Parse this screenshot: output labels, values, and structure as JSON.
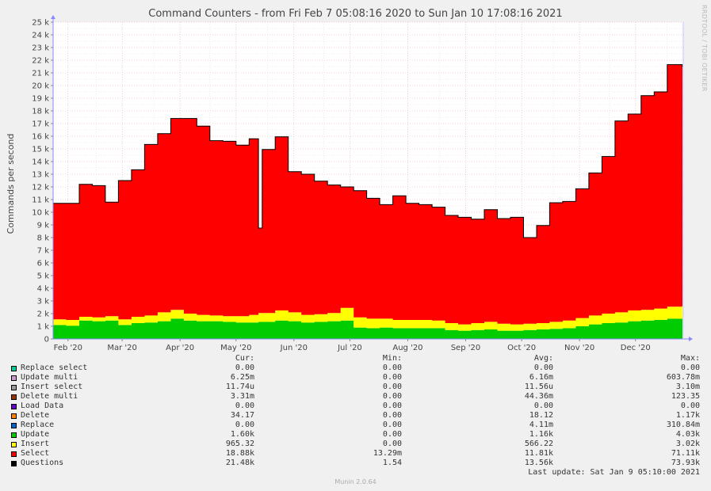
{
  "chart_data": {
    "type": "area",
    "title": "Command Counters - from Fri Feb  7 05:08:16 2020 to Sun Jan 10 17:08:16 2021",
    "ylabel": "Commands per second",
    "xlabel": "",
    "ylim": [
      0,
      25000
    ],
    "y_tick_values": [
      0,
      1000,
      2000,
      3000,
      4000,
      5000,
      6000,
      7000,
      8000,
      9000,
      10000,
      11000,
      12000,
      13000,
      14000,
      15000,
      16000,
      17000,
      18000,
      19000,
      20000,
      21000,
      22000,
      23000,
      24000,
      25000
    ],
    "y_tick_labels": [
      "0",
      "1 k",
      "2 k",
      "3 k",
      "4 k",
      "5 k",
      "6 k",
      "7 k",
      "8 k",
      "9 k",
      "10 k",
      "11 k",
      "12 k",
      "13 k",
      "14 k",
      "15 k",
      "16 k",
      "17 k",
      "18 k",
      "19 k",
      "20 k",
      "21 k",
      "22 k",
      "23 k",
      "24 k",
      "25 k"
    ],
    "x_range": [
      "2020-02-07",
      "2021-01-10"
    ],
    "x_tick_labels": [
      "Feb '20",
      "Mar '20",
      "Apr '20",
      "May '20",
      "Jun '20",
      "Jul '20",
      "Aug '20",
      "Sep '20",
      "Oct '20",
      "Nov '20",
      "Dec '20"
    ],
    "x_tick_dates": [
      "2020-02-15",
      "2020-03-15",
      "2020-04-15",
      "2020-05-15",
      "2020-06-15",
      "2020-07-15",
      "2020-08-15",
      "2020-09-15",
      "2020-10-15",
      "2020-11-15",
      "2020-12-15"
    ],
    "grid": true,
    "stacked": true,
    "dates": [
      "2020-02-07",
      "2020-02-14",
      "2020-02-21",
      "2020-02-28",
      "2020-03-06",
      "2020-03-13",
      "2020-03-20",
      "2020-03-27",
      "2020-04-03",
      "2020-04-10",
      "2020-04-17",
      "2020-04-24",
      "2020-05-01",
      "2020-05-08",
      "2020-05-15",
      "2020-05-22",
      "2020-05-27",
      "2020-05-29",
      "2020-06-05",
      "2020-06-12",
      "2020-06-19",
      "2020-06-26",
      "2020-07-03",
      "2020-07-10",
      "2020-07-17",
      "2020-07-24",
      "2020-07-31",
      "2020-08-07",
      "2020-08-14",
      "2020-08-21",
      "2020-08-28",
      "2020-09-04",
      "2020-09-11",
      "2020-09-18",
      "2020-09-25",
      "2020-10-02",
      "2020-10-09",
      "2020-10-16",
      "2020-10-23",
      "2020-10-30",
      "2020-11-06",
      "2020-11-13",
      "2020-11-20",
      "2020-11-27",
      "2020-12-04",
      "2020-12-11",
      "2020-12-18",
      "2020-12-25",
      "2021-01-01",
      "2021-01-09"
    ],
    "series": [
      {
        "name": "Update",
        "color": "#00cc00",
        "values": [
          1100,
          1050,
          1450,
          1400,
          1450,
          1100,
          1250,
          1300,
          1400,
          1600,
          1450,
          1400,
          1400,
          1350,
          1300,
          1300,
          1350,
          1350,
          1450,
          1400,
          1300,
          1350,
          1400,
          1450,
          900,
          850,
          900,
          850,
          850,
          850,
          850,
          700,
          650,
          700,
          750,
          650,
          650,
          700,
          750,
          800,
          850,
          1000,
          1150,
          1250,
          1300,
          1400,
          1450,
          1500,
          1600,
          1600
        ]
      },
      {
        "name": "Insert",
        "color": "#ffff00",
        "values": [
          450,
          450,
          300,
          300,
          350,
          450,
          500,
          550,
          700,
          700,
          550,
          500,
          450,
          450,
          500,
          600,
          700,
          700,
          800,
          700,
          600,
          600,
          650,
          1000,
          800,
          750,
          700,
          650,
          650,
          650,
          600,
          550,
          500,
          550,
          600,
          550,
          500,
          500,
          500,
          550,
          600,
          650,
          700,
          750,
          800,
          850,
          850,
          900,
          950,
          1000
        ]
      },
      {
        "name": "Select",
        "color": "#ff0000",
        "values": [
          9150,
          9200,
          10450,
          10400,
          9000,
          10950,
          11600,
          13500,
          14100,
          15100,
          15400,
          14900,
          13800,
          13800,
          13500,
          13900,
          6700,
          12900,
          13700,
          11100,
          11100,
          10500,
          10100,
          9550,
          10000,
          9500,
          9000,
          9800,
          9200,
          9100,
          8950,
          8500,
          8450,
          8200,
          8850,
          8300,
          8450,
          6800,
          7700,
          9400,
          9400,
          10200,
          11250,
          12400,
          15100,
          15500,
          16900,
          17100,
          19100,
          18900
        ]
      }
    ],
    "total": [
      10700,
      10700,
      12200,
      12100,
      10800,
      12500,
      13350,
      15350,
      16200,
      17400,
      17400,
      16800,
      15650,
      15600,
      15300,
      15800,
      8750,
      14950,
      15950,
      13200,
      13000,
      12450,
      12150,
      12000,
      11700,
      11100,
      10600,
      11300,
      10700,
      10600,
      10400,
      9750,
      9600,
      9450,
      10200,
      9500,
      9600,
      8000,
      8950,
      10750,
      10850,
      11850,
      13100,
      14400,
      17200,
      17750,
      19200,
      19500,
      21650,
      21500
    ],
    "legend_placement": "bottom",
    "legend": {
      "headers": [
        "Cur:",
        "Min:",
        "Avg:",
        "Max:"
      ],
      "rows": [
        {
          "name": "Replace select",
          "color": "#00cc99",
          "cur": "0.00",
          "min": "0.00",
          "avg": "0.00",
          "max": "0.00"
        },
        {
          "name": "Update multi",
          "color": "#cc99cc",
          "cur": "6.25m",
          "min": "0.00",
          "avg": "6.16m",
          "max": "603.78m"
        },
        {
          "name": "Insert select",
          "color": "#999999",
          "cur": "11.74u",
          "min": "0.00",
          "avg": "11.56u",
          "max": "3.10m"
        },
        {
          "name": "Delete multi",
          "color": "#993300",
          "cur": "3.31m",
          "min": "0.00",
          "avg": "44.36m",
          "max": "123.35"
        },
        {
          "name": "Load Data",
          "color": "#6600cc",
          "cur": "0.00",
          "min": "0.00",
          "avg": "0.00",
          "max": "0.00"
        },
        {
          "name": "Delete",
          "color": "#ff8000",
          "cur": "34.17",
          "min": "0.00",
          "avg": "18.12",
          "max": "1.17k"
        },
        {
          "name": "Replace",
          "color": "#0066cc",
          "cur": "0.00",
          "min": "0.00",
          "avg": "4.11m",
          "max": "310.84m"
        },
        {
          "name": "Update",
          "color": "#00cc00",
          "cur": "1.60k",
          "min": "0.00",
          "avg": "1.16k",
          "max": "4.03k"
        },
        {
          "name": "Insert",
          "color": "#ffff00",
          "cur": "965.32",
          "min": "0.00",
          "avg": "566.22",
          "max": "3.02k"
        },
        {
          "name": "Select",
          "color": "#ff0000",
          "cur": "18.88k",
          "min": "13.29m",
          "avg": "11.81k",
          "max": "71.11k"
        },
        {
          "name": "Questions",
          "color": "#000000",
          "cur": "21.48k",
          "min": "1.54",
          "avg": "13.56k",
          "max": "73.93k"
        }
      ]
    }
  },
  "side_credit": "RRDTOOL / TOBI OETIKER",
  "last_update": "Last update: Sat Jan  9 05:10:00 2021",
  "footer": "Munin 2.0.64"
}
